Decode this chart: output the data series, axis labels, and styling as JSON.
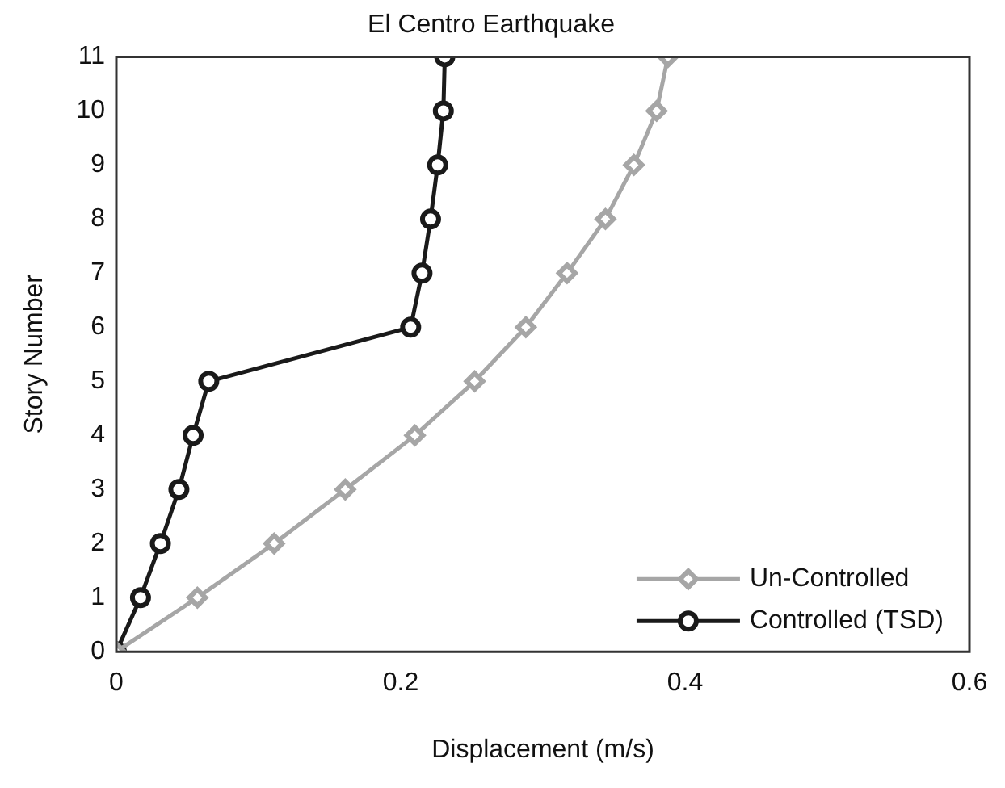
{
  "chart_data": {
    "type": "line",
    "title": "El Centro Earthquake",
    "xlabel": "Displacement (m/s)",
    "ylabel": "Story Number",
    "xlim": [
      0,
      0.6
    ],
    "xticks": [
      0,
      0.2,
      0.4,
      0.6
    ],
    "ylim": [
      0,
      11
    ],
    "yticks": [
      0,
      1,
      2,
      3,
      4,
      5,
      6,
      7,
      8,
      9,
      10,
      11
    ],
    "grid": false,
    "legend": "bottom right",
    "line_style": "solid",
    "series": [
      {
        "name": "Un-Controlled",
        "color": "#a6a6a6",
        "marker": "diamond",
        "x": [
          0,
          0.057,
          0.111,
          0.161,
          0.21,
          0.252,
          0.288,
          0.317,
          0.344,
          0.364,
          0.38,
          0.388
        ],
        "values": [
          0,
          1,
          2,
          3,
          4,
          5,
          6,
          7,
          8,
          9,
          10,
          11
        ]
      },
      {
        "name": "Controlled (TSD)",
        "color": "#1a1a1a",
        "marker": "circle",
        "x": [
          0,
          0.017,
          0.031,
          0.044,
          0.054,
          0.065,
          0.207,
          0.215,
          0.221,
          0.226,
          0.23,
          0.231
        ],
        "values": [
          0,
          1,
          2,
          3,
          4,
          5,
          6,
          7,
          8,
          9,
          10,
          11
        ]
      }
    ]
  }
}
